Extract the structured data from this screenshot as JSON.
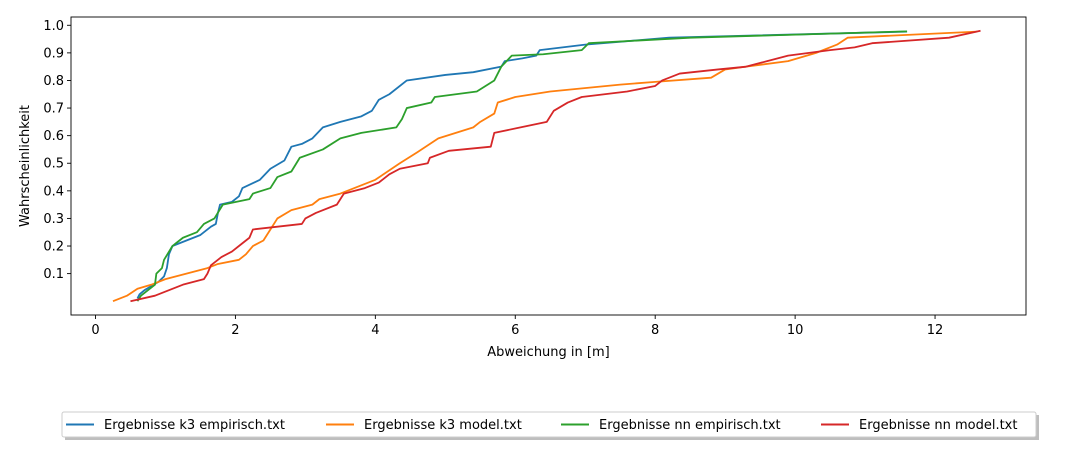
{
  "chart_data": {
    "type": "line",
    "title": "",
    "xlabel": "Abweichung in [m]",
    "ylabel": "Wahrscheinlichkeit",
    "xlim": [
      -0.35,
      13.3
    ],
    "ylim": [
      -0.05,
      1.03
    ],
    "xticks": [
      0,
      2,
      4,
      6,
      8,
      10,
      12
    ],
    "yticks": [
      0.1,
      0.2,
      0.3,
      0.4,
      0.5,
      0.6,
      0.7,
      0.8,
      0.9,
      1.0
    ],
    "xtick_labels": [
      "0",
      "2",
      "4",
      "6",
      "8",
      "10",
      "12"
    ],
    "ytick_labels": [
      "0.1",
      "0.2",
      "0.3",
      "0.4",
      "0.5",
      "0.6",
      "0.7",
      "0.8",
      "0.9",
      "1.0"
    ],
    "grid": false,
    "legend_position": "bottom-center",
    "series": [
      {
        "name": "Ergebnisse k3 empirisch.txt",
        "color": "#1f77b4",
        "points": [
          [
            0.6,
            0.01
          ],
          [
            0.63,
            0.025
          ],
          [
            0.7,
            0.04
          ],
          [
            0.8,
            0.055
          ],
          [
            0.9,
            0.07
          ],
          [
            0.98,
            0.09
          ],
          [
            1.02,
            0.12
          ],
          [
            1.05,
            0.17
          ],
          [
            1.1,
            0.2
          ],
          [
            1.3,
            0.22
          ],
          [
            1.5,
            0.24
          ],
          [
            1.65,
            0.27
          ],
          [
            1.72,
            0.28
          ],
          [
            1.75,
            0.32
          ],
          [
            1.78,
            0.35
          ],
          [
            1.95,
            0.36
          ],
          [
            2.05,
            0.38
          ],
          [
            2.1,
            0.41
          ],
          [
            2.35,
            0.44
          ],
          [
            2.5,
            0.48
          ],
          [
            2.7,
            0.51
          ],
          [
            2.8,
            0.56
          ],
          [
            2.95,
            0.57
          ],
          [
            3.1,
            0.59
          ],
          [
            3.25,
            0.63
          ],
          [
            3.5,
            0.65
          ],
          [
            3.8,
            0.67
          ],
          [
            3.95,
            0.69
          ],
          [
            4.05,
            0.73
          ],
          [
            4.2,
            0.75
          ],
          [
            4.45,
            0.8
          ],
          [
            5.0,
            0.82
          ],
          [
            5.4,
            0.83
          ],
          [
            5.8,
            0.85
          ],
          [
            5.85,
            0.87
          ],
          [
            6.1,
            0.88
          ],
          [
            6.3,
            0.89
          ],
          [
            6.35,
            0.91
          ],
          [
            7.0,
            0.93
          ],
          [
            8.2,
            0.955
          ],
          [
            11.6,
            0.977
          ]
        ]
      },
      {
        "name": "Ergebnisse k3 model.txt",
        "color": "#ff7f0e",
        "points": [
          [
            0.25,
            0.0
          ],
          [
            0.45,
            0.02
          ],
          [
            0.6,
            0.045
          ],
          [
            0.8,
            0.06
          ],
          [
            1.0,
            0.08
          ],
          [
            1.3,
            0.1
          ],
          [
            1.6,
            0.12
          ],
          [
            1.75,
            0.135
          ],
          [
            2.05,
            0.15
          ],
          [
            2.15,
            0.17
          ],
          [
            2.25,
            0.2
          ],
          [
            2.4,
            0.22
          ],
          [
            2.5,
            0.26
          ],
          [
            2.6,
            0.3
          ],
          [
            2.8,
            0.33
          ],
          [
            3.1,
            0.35
          ],
          [
            3.2,
            0.37
          ],
          [
            3.5,
            0.39
          ],
          [
            3.7,
            0.41
          ],
          [
            4.0,
            0.44
          ],
          [
            4.35,
            0.5
          ],
          [
            4.6,
            0.54
          ],
          [
            4.9,
            0.59
          ],
          [
            5.4,
            0.63
          ],
          [
            5.5,
            0.65
          ],
          [
            5.7,
            0.68
          ],
          [
            5.75,
            0.72
          ],
          [
            6.0,
            0.74
          ],
          [
            6.5,
            0.76
          ],
          [
            7.5,
            0.785
          ],
          [
            8.0,
            0.795
          ],
          [
            8.8,
            0.81
          ],
          [
            9.0,
            0.84
          ],
          [
            9.3,
            0.85
          ],
          [
            9.9,
            0.87
          ],
          [
            10.3,
            0.9
          ],
          [
            10.6,
            0.93
          ],
          [
            10.75,
            0.955
          ],
          [
            12.6,
            0.977
          ]
        ]
      },
      {
        "name": "Ergebnisse nn empirisch.txt",
        "color": "#2ca02c",
        "points": [
          [
            0.6,
            0.0
          ],
          [
            0.65,
            0.02
          ],
          [
            0.75,
            0.04
          ],
          [
            0.85,
            0.06
          ],
          [
            0.87,
            0.1
          ],
          [
            0.95,
            0.12
          ],
          [
            0.98,
            0.15
          ],
          [
            1.1,
            0.2
          ],
          [
            1.15,
            0.21
          ],
          [
            1.25,
            0.23
          ],
          [
            1.45,
            0.25
          ],
          [
            1.55,
            0.28
          ],
          [
            1.7,
            0.3
          ],
          [
            1.82,
            0.35
          ],
          [
            2.2,
            0.37
          ],
          [
            2.25,
            0.39
          ],
          [
            2.5,
            0.41
          ],
          [
            2.6,
            0.45
          ],
          [
            2.8,
            0.47
          ],
          [
            2.92,
            0.52
          ],
          [
            3.25,
            0.55
          ],
          [
            3.5,
            0.59
          ],
          [
            3.8,
            0.61
          ],
          [
            4.3,
            0.63
          ],
          [
            4.38,
            0.66
          ],
          [
            4.45,
            0.7
          ],
          [
            4.8,
            0.72
          ],
          [
            4.85,
            0.74
          ],
          [
            5.45,
            0.76
          ],
          [
            5.7,
            0.8
          ],
          [
            5.8,
            0.85
          ],
          [
            5.95,
            0.89
          ],
          [
            6.4,
            0.895
          ],
          [
            6.95,
            0.91
          ],
          [
            7.05,
            0.935
          ],
          [
            8.5,
            0.955
          ],
          [
            11.6,
            0.978
          ]
        ]
      },
      {
        "name": "Ergebnisse nn model.txt",
        "color": "#d62728",
        "points": [
          [
            0.5,
            0.0
          ],
          [
            0.85,
            0.02
          ],
          [
            1.05,
            0.04
          ],
          [
            1.25,
            0.06
          ],
          [
            1.55,
            0.08
          ],
          [
            1.6,
            0.1
          ],
          [
            1.65,
            0.13
          ],
          [
            1.8,
            0.16
          ],
          [
            1.95,
            0.18
          ],
          [
            2.1,
            0.21
          ],
          [
            2.2,
            0.23
          ],
          [
            2.25,
            0.26
          ],
          [
            2.95,
            0.28
          ],
          [
            3.0,
            0.3
          ],
          [
            3.15,
            0.32
          ],
          [
            3.45,
            0.35
          ],
          [
            3.55,
            0.39
          ],
          [
            3.85,
            0.41
          ],
          [
            4.05,
            0.43
          ],
          [
            4.2,
            0.46
          ],
          [
            4.35,
            0.48
          ],
          [
            4.75,
            0.5
          ],
          [
            4.78,
            0.52
          ],
          [
            5.05,
            0.545
          ],
          [
            5.65,
            0.56
          ],
          [
            5.7,
            0.61
          ],
          [
            6.45,
            0.65
          ],
          [
            6.55,
            0.69
          ],
          [
            6.75,
            0.72
          ],
          [
            6.95,
            0.74
          ],
          [
            7.6,
            0.76
          ],
          [
            8.0,
            0.78
          ],
          [
            8.1,
            0.8
          ],
          [
            8.35,
            0.825
          ],
          [
            8.9,
            0.84
          ],
          [
            9.3,
            0.85
          ],
          [
            9.6,
            0.87
          ],
          [
            9.9,
            0.89
          ],
          [
            10.5,
            0.91
          ],
          [
            10.85,
            0.92
          ],
          [
            11.1,
            0.935
          ],
          [
            12.2,
            0.955
          ],
          [
            12.65,
            0.98
          ]
        ]
      }
    ]
  }
}
